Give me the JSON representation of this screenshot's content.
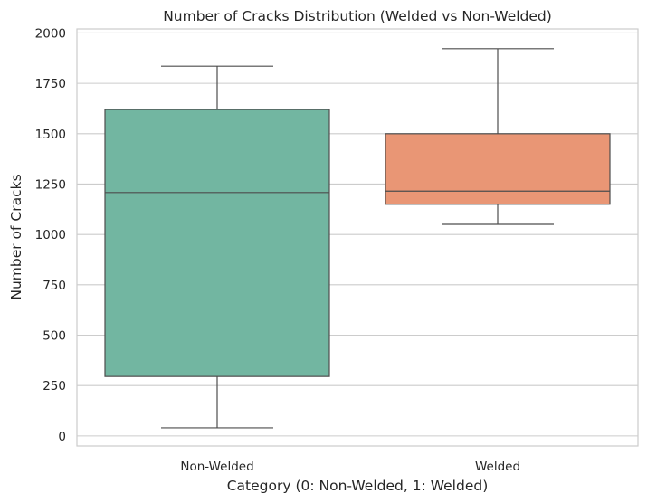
{
  "chart_data": {
    "type": "box",
    "title": "Number of Cracks Distribution (Welded vs Non-Welded)",
    "xlabel": "Category (0: Non-Welded, 1: Welded)",
    "ylabel": "Number of Cracks",
    "ylim": [
      -50,
      2020
    ],
    "yticks": [
      0,
      250,
      500,
      750,
      1000,
      1250,
      1500,
      1750,
      2000
    ],
    "grid": "horizontal",
    "categories": [
      "Non-Welded",
      "Welded"
    ],
    "boxes": [
      {
        "category": "Non-Welded",
        "min": 40,
        "q1": 295,
        "median": 1208,
        "q3": 1620,
        "max": 1835,
        "color": "#72b6a1"
      },
      {
        "category": "Welded",
        "min": 1050,
        "q1": 1150,
        "median": 1215,
        "q3": 1500,
        "max": 1922,
        "color": "#e99675"
      }
    ]
  }
}
